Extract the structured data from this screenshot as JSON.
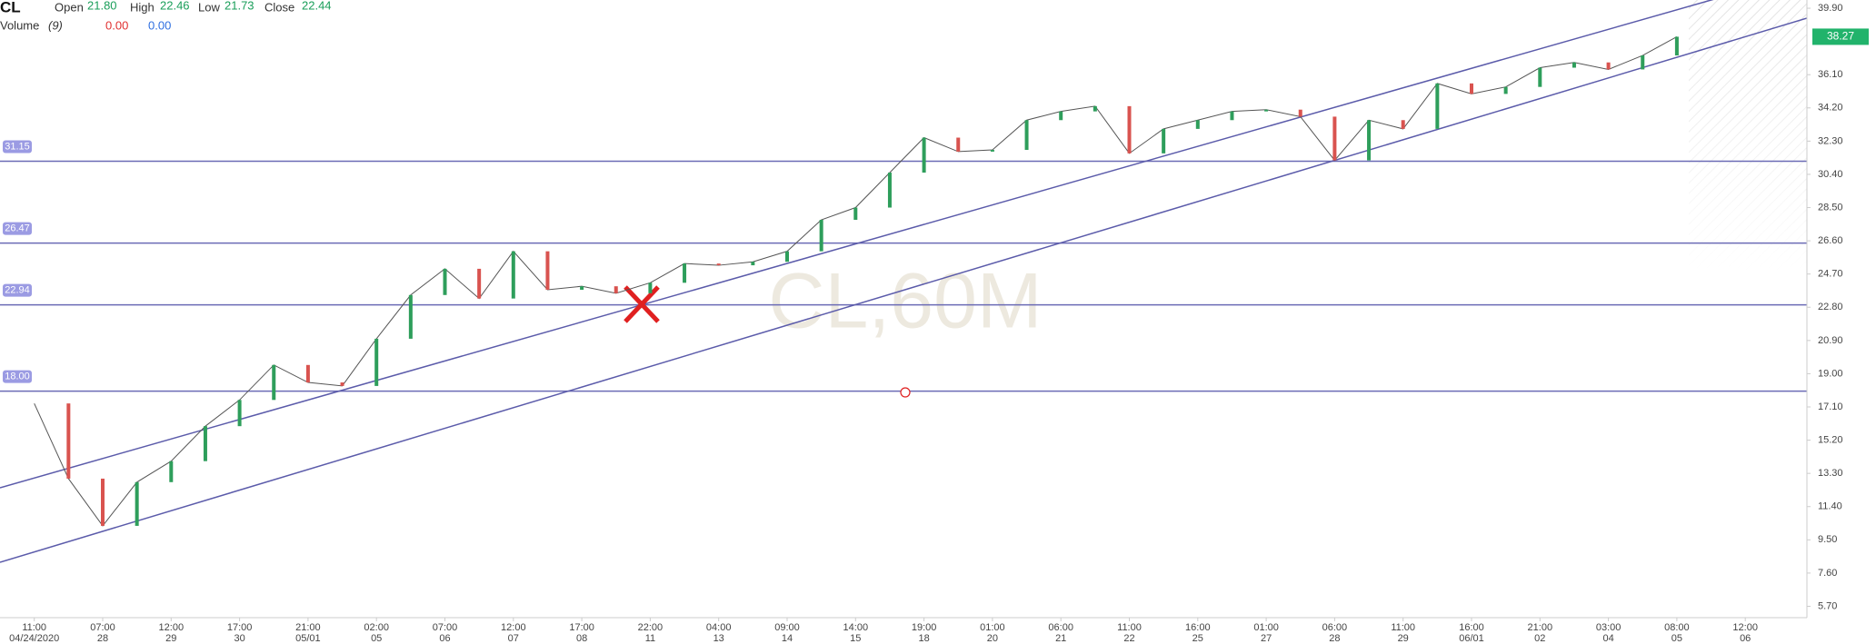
{
  "header": {
    "symbol": "CL",
    "open_label": "Open",
    "open": "21.80",
    "high_label": "High",
    "high": "22.46",
    "low_label": "Low",
    "low": "21.73",
    "close_label": "Close",
    "close": "22.44",
    "volume_label": "Volume",
    "volume_period": "(9)",
    "volume_a": "0.00",
    "volume_b": "0.00"
  },
  "chart_data": {
    "type": "candlestick",
    "watermark": "CL,60M",
    "up_color": "#2e9e5b",
    "down_color": "#d9534f",
    "level_color": "#6b6bb5",
    "x_ticks": [
      {
        "time": "11:00",
        "date": "04/24/2020"
      },
      {
        "time": "07:00",
        "date": "28"
      },
      {
        "time": "12:00",
        "date": "29"
      },
      {
        "time": "17:00",
        "date": "30"
      },
      {
        "time": "21:00",
        "date": "05/01"
      },
      {
        "time": "02:00",
        "date": "05"
      },
      {
        "time": "07:00",
        "date": "06"
      },
      {
        "time": "12:00",
        "date": "07"
      },
      {
        "time": "17:00",
        "date": "08"
      },
      {
        "time": "22:00",
        "date": "11"
      },
      {
        "time": "04:00",
        "date": "13"
      },
      {
        "time": "09:00",
        "date": "14"
      },
      {
        "time": "14:00",
        "date": "15"
      },
      {
        "time": "19:00",
        "date": "18"
      },
      {
        "time": "01:00",
        "date": "20"
      },
      {
        "time": "06:00",
        "date": "21"
      },
      {
        "time": "11:00",
        "date": "22"
      },
      {
        "time": "16:00",
        "date": "25"
      },
      {
        "time": "01:00",
        "date": "27"
      },
      {
        "time": "06:00",
        "date": "28"
      },
      {
        "time": "11:00",
        "date": "29"
      },
      {
        "time": "16:00",
        "date": "06/01"
      },
      {
        "time": "21:00",
        "date": "02"
      },
      {
        "time": "03:00",
        "date": "04"
      },
      {
        "time": "08:00",
        "date": "05"
      },
      {
        "time": "12:00",
        "date": "06"
      }
    ],
    "values": [
      17.3,
      13.0,
      10.3,
      12.8,
      14.0,
      16.0,
      17.5,
      19.5,
      18.5,
      18.3,
      21.0,
      23.5,
      25.0,
      23.3,
      26.0,
      23.8,
      24.0,
      23.6,
      24.2,
      25.3,
      25.2,
      25.4,
      26.0,
      27.8,
      28.5,
      30.5,
      32.5,
      31.7,
      31.8,
      33.5,
      34.0,
      34.3,
      31.6,
      33.0,
      33.5,
      34.0,
      34.1,
      33.7,
      31.2,
      33.5,
      33.0,
      35.6,
      35.0,
      35.4,
      36.5,
      36.8,
      36.4,
      37.2,
      38.27
    ],
    "last_price": 38.27,
    "levels": [
      31.15,
      26.47,
      22.94,
      {
        "value": 18,
        "label": "18.00"
      }
    ],
    "ylim": [
      5.05,
      40.37
    ],
    "yticks": [
      {
        "value": 39.9,
        "label": "39.90"
      },
      {
        "value": 36.1,
        "label": "36.10"
      },
      {
        "value": 34.2,
        "label": "34.20"
      },
      {
        "value": 32.3,
        "label": "32.30"
      },
      {
        "value": 30.4,
        "label": "30.40"
      },
      {
        "value": 28.5,
        "label": "28.50"
      },
      {
        "value": 26.6,
        "label": "26.60"
      },
      {
        "value": 24.7,
        "label": "24.70"
      },
      {
        "value": 22.8,
        "label": "22.80"
      },
      {
        "value": 20.9,
        "label": "20.90"
      },
      {
        "value": 19,
        "label": "19.00"
      },
      {
        "value": 17.1,
        "label": "17.10"
      },
      {
        "value": 15.2,
        "label": "15.20"
      },
      {
        "value": 13.3,
        "label": "13.30"
      },
      {
        "value": 11.4,
        "label": "11.40"
      },
      {
        "value": 9.5,
        "label": "9.50"
      },
      {
        "value": 7.6,
        "label": "7.60"
      },
      {
        "value": 5.7,
        "label": "5.70"
      }
    ],
    "grid": false
  }
}
